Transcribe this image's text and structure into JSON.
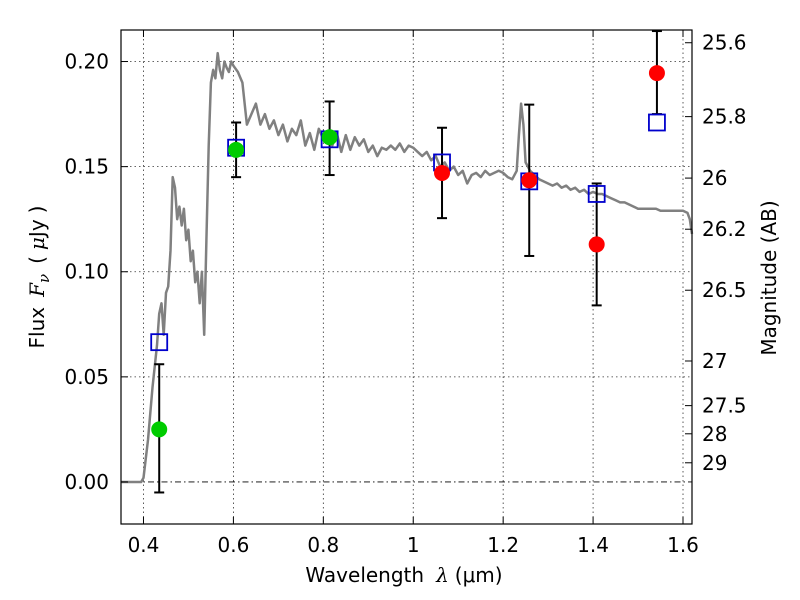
{
  "chart_data": {
    "type": "scatter",
    "xlabel_text": "Wavelength",
    "xlabel_symbol": "λ",
    "xlabel_unit": "(μm)",
    "ylabel_text": "Flux",
    "ylabel_symbol": "F",
    "ylabel_symbol_sub": "ν",
    "ylabel_unit_open": "(",
    "ylabel_unit_mu": "μ",
    "ylabel_unit_rest": "Jy",
    "ylabel_unit_close": ")",
    "y2label": "Magnitude (AB)",
    "xlim": [
      0.35,
      1.62
    ],
    "ylim": [
      -0.02,
      0.215
    ],
    "x_ticks": [
      0.4,
      0.6,
      0.8,
      1.0,
      1.2,
      1.4,
      1.6
    ],
    "x_tick_labels": [
      "0.4",
      "0.6",
      "0.8",
      "1",
      "1.2",
      "1.4",
      "1.6"
    ],
    "y_ticks": [
      0.0,
      0.05,
      0.1,
      0.15,
      0.2
    ],
    "y_tick_labels": [
      "0.00",
      "0.05",
      "0.10",
      "0.15",
      "0.20"
    ],
    "mag_ticks": [
      25.6,
      25.8,
      26,
      26.2,
      26.5,
      27,
      27.5,
      28,
      29
    ],
    "mag_tick_labels": [
      "25.6",
      "25.8",
      "26",
      "26.2",
      "26.5",
      "27",
      "27.5",
      "28",
      "29"
    ],
    "grid": true,
    "series": [
      {
        "marker": "line",
        "color": "#808080",
        "points": [
          [
            0.35,
            0.0
          ],
          [
            0.395,
            0.0
          ],
          [
            0.4,
            0.002
          ],
          [
            0.41,
            0.02
          ],
          [
            0.42,
            0.045
          ],
          [
            0.43,
            0.065
          ],
          [
            0.435,
            0.08
          ],
          [
            0.44,
            0.085
          ],
          [
            0.445,
            0.07
          ],
          [
            0.45,
            0.09
          ],
          [
            0.455,
            0.093
          ],
          [
            0.46,
            0.11
          ],
          [
            0.465,
            0.145
          ],
          [
            0.47,
            0.14
          ],
          [
            0.475,
            0.125
          ],
          [
            0.48,
            0.131
          ],
          [
            0.485,
            0.122
          ],
          [
            0.49,
            0.13
          ],
          [
            0.495,
            0.115
          ],
          [
            0.5,
            0.12
          ],
          [
            0.505,
            0.105
          ],
          [
            0.51,
            0.11
          ],
          [
            0.515,
            0.095
          ],
          [
            0.52,
            0.1
          ],
          [
            0.525,
            0.085
          ],
          [
            0.53,
            0.1
          ],
          [
            0.535,
            0.07
          ],
          [
            0.54,
            0.115
          ],
          [
            0.545,
            0.16
          ],
          [
            0.55,
            0.19
          ],
          [
            0.555,
            0.196
          ],
          [
            0.56,
            0.192
          ],
          [
            0.565,
            0.204
          ],
          [
            0.57,
            0.196
          ],
          [
            0.575,
            0.192
          ],
          [
            0.58,
            0.2
          ],
          [
            0.585,
            0.197
          ],
          [
            0.59,
            0.195
          ],
          [
            0.595,
            0.2
          ],
          [
            0.6,
            0.198
          ],
          [
            0.61,
            0.195
          ],
          [
            0.62,
            0.19
          ],
          [
            0.63,
            0.17
          ],
          [
            0.64,
            0.175
          ],
          [
            0.65,
            0.18
          ],
          [
            0.66,
            0.17
          ],
          [
            0.67,
            0.175
          ],
          [
            0.68,
            0.168
          ],
          [
            0.69,
            0.172
          ],
          [
            0.7,
            0.165
          ],
          [
            0.71,
            0.17
          ],
          [
            0.72,
            0.162
          ],
          [
            0.73,
            0.168
          ],
          [
            0.74,
            0.165
          ],
          [
            0.75,
            0.172
          ],
          [
            0.76,
            0.16
          ],
          [
            0.77,
            0.166
          ],
          [
            0.78,
            0.158
          ],
          [
            0.79,
            0.168
          ],
          [
            0.8,
            0.163
          ],
          [
            0.81,
            0.167
          ],
          [
            0.82,
            0.16
          ],
          [
            0.83,
            0.166
          ],
          [
            0.84,
            0.157
          ],
          [
            0.85,
            0.165
          ],
          [
            0.86,
            0.158
          ],
          [
            0.87,
            0.164
          ],
          [
            0.88,
            0.16
          ],
          [
            0.89,
            0.163
          ],
          [
            0.9,
            0.157
          ],
          [
            0.91,
            0.16
          ],
          [
            0.92,
            0.155
          ],
          [
            0.93,
            0.159
          ],
          [
            0.94,
            0.158
          ],
          [
            0.95,
            0.16
          ],
          [
            0.96,
            0.158
          ],
          [
            0.97,
            0.161
          ],
          [
            0.98,
            0.157
          ],
          [
            0.99,
            0.16
          ],
          [
            1.0,
            0.159
          ],
          [
            1.01,
            0.157
          ],
          [
            1.02,
            0.155
          ],
          [
            1.03,
            0.157
          ],
          [
            1.04,
            0.153
          ],
          [
            1.05,
            0.155
          ],
          [
            1.06,
            0.15
          ],
          [
            1.07,
            0.152
          ],
          [
            1.08,
            0.148
          ],
          [
            1.09,
            0.15
          ],
          [
            1.1,
            0.146
          ],
          [
            1.11,
            0.148
          ],
          [
            1.12,
            0.142
          ],
          [
            1.13,
            0.146
          ],
          [
            1.14,
            0.147
          ],
          [
            1.15,
            0.145
          ],
          [
            1.16,
            0.148
          ],
          [
            1.17,
            0.146
          ],
          [
            1.18,
            0.147
          ],
          [
            1.19,
            0.148
          ],
          [
            1.2,
            0.147
          ],
          [
            1.21,
            0.145
          ],
          [
            1.22,
            0.144
          ],
          [
            1.23,
            0.148
          ],
          [
            1.235,
            0.165
          ],
          [
            1.24,
            0.18
          ],
          [
            1.245,
            0.17
          ],
          [
            1.25,
            0.152
          ],
          [
            1.26,
            0.148
          ],
          [
            1.27,
            0.146
          ],
          [
            1.28,
            0.144
          ],
          [
            1.29,
            0.143
          ],
          [
            1.3,
            0.142
          ],
          [
            1.31,
            0.141
          ],
          [
            1.32,
            0.142
          ],
          [
            1.33,
            0.14
          ],
          [
            1.34,
            0.141
          ],
          [
            1.35,
            0.139
          ],
          [
            1.36,
            0.14
          ],
          [
            1.37,
            0.138
          ],
          [
            1.38,
            0.139
          ],
          [
            1.39,
            0.137
          ],
          [
            1.4,
            0.138
          ],
          [
            1.41,
            0.137
          ],
          [
            1.42,
            0.137
          ],
          [
            1.43,
            0.136
          ],
          [
            1.44,
            0.135
          ],
          [
            1.45,
            0.134
          ],
          [
            1.46,
            0.133
          ],
          [
            1.47,
            0.133
          ],
          [
            1.48,
            0.132
          ],
          [
            1.49,
            0.131
          ],
          [
            1.5,
            0.13
          ],
          [
            1.51,
            0.13
          ],
          [
            1.52,
            0.13
          ],
          [
            1.53,
            0.13
          ],
          [
            1.54,
            0.13
          ],
          [
            1.55,
            0.129
          ],
          [
            1.56,
            0.129
          ],
          [
            1.57,
            0.129
          ],
          [
            1.58,
            0.129
          ],
          [
            1.59,
            0.129
          ],
          [
            1.6,
            0.129
          ],
          [
            1.61,
            0.128
          ],
          [
            1.615,
            0.125
          ],
          [
            1.62,
            0.118
          ]
        ]
      },
      {
        "marker": "square-open",
        "color": "#0000cc",
        "points": [
          [
            0.435,
            0.0665
          ],
          [
            0.606,
            0.159
          ],
          [
            0.814,
            0.163
          ],
          [
            1.064,
            0.152
          ],
          [
            1.258,
            0.143
          ],
          [
            1.408,
            0.137
          ],
          [
            1.542,
            0.171
          ]
        ]
      },
      {
        "marker": "circle",
        "color": "#00cc00",
        "points": [
          [
            0.435,
            0.025
          ],
          [
            0.606,
            0.158
          ],
          [
            0.814,
            0.164
          ]
        ]
      },
      {
        "marker": "circle",
        "color": "#ff0000",
        "points": [
          [
            1.064,
            0.147
          ],
          [
            1.258,
            0.1435
          ],
          [
            1.408,
            0.113
          ],
          [
            1.542,
            0.1945
          ]
        ]
      }
    ],
    "error_bars": [
      {
        "x": 0.435,
        "ylow": -0.005,
        "yhigh": 0.056
      },
      {
        "x": 0.606,
        "ylow": 0.145,
        "yhigh": 0.171
      },
      {
        "x": 0.814,
        "ylow": 0.146,
        "yhigh": 0.181
      },
      {
        "x": 1.064,
        "ylow": 0.1255,
        "yhigh": 0.1685
      },
      {
        "x": 1.258,
        "ylow": 0.1075,
        "yhigh": 0.1795
      },
      {
        "x": 1.408,
        "ylow": 0.084,
        "yhigh": 0.142
      },
      {
        "x": 1.542,
        "ylow": 0.175,
        "yhigh": 0.2145
      }
    ],
    "colors": {
      "model": "#808080",
      "square": "#0000cc",
      "green": "#00cc00",
      "red": "#ff0000",
      "errorbar": "#000000"
    }
  }
}
